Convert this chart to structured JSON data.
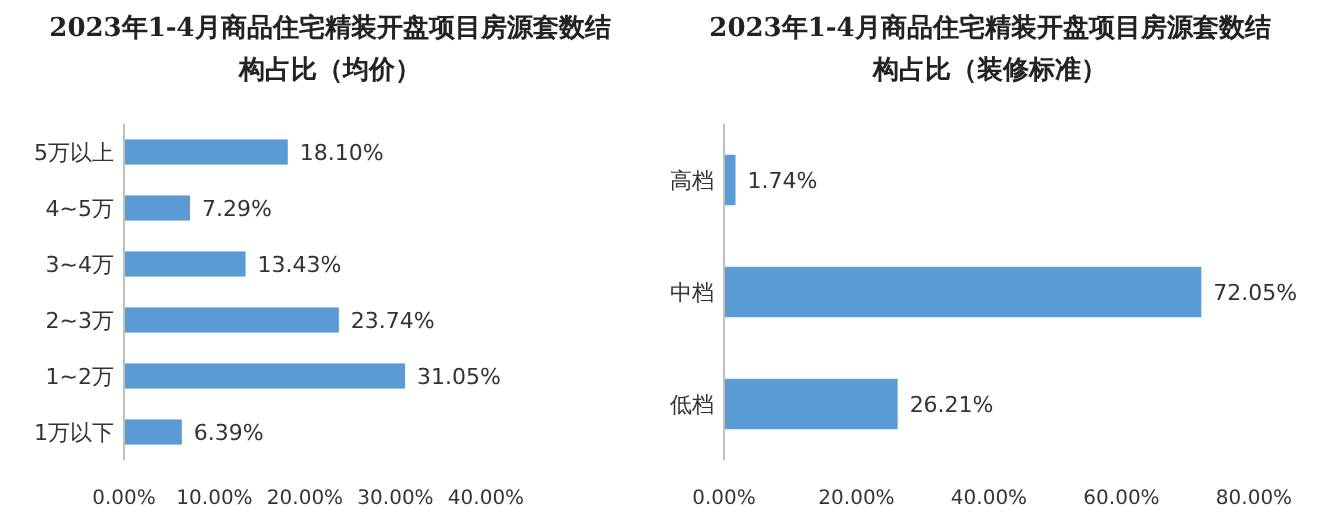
{
  "chart_data": [
    {
      "type": "bar",
      "orientation": "horizontal",
      "title": "2023年1-4月商品住宅精装开盘项目房源套数结构占比（均价）",
      "categories": [
        "5万以上",
        "4~5万",
        "3~4万",
        "2~3万",
        "1~2万",
        "1万以下"
      ],
      "values": [
        18.1,
        7.29,
        13.43,
        23.74,
        31.05,
        6.39
      ],
      "value_labels": [
        "18.10%",
        "7.29%",
        "13.43%",
        "23.74%",
        "31.05%",
        "6.39%"
      ],
      "color": "#5b9bd5",
      "xlim": [
        0,
        40
      ],
      "xticks": [
        {
          "value": 0,
          "label": "0.00%"
        },
        {
          "value": 10,
          "label": "10.00%"
        },
        {
          "value": 20,
          "label": "20.00%"
        },
        {
          "value": 30,
          "label": "30.00%"
        },
        {
          "value": 40,
          "label": "40.00%"
        }
      ],
      "grid": false
    },
    {
      "type": "bar",
      "orientation": "horizontal",
      "title": "2023年1-4月商品住宅精装开盘项目房源套数结构占比（装修标准）",
      "categories": [
        "高档",
        "中档",
        "低档"
      ],
      "values": [
        1.74,
        72.05,
        26.21
      ],
      "value_labels": [
        "1.74%",
        "72.05%",
        "26.21%"
      ],
      "color": "#5b9bd5",
      "xlim": [
        0,
        80
      ],
      "xticks": [
        {
          "value": 0,
          "label": "0.00%"
        },
        {
          "value": 20,
          "label": "20.00%"
        },
        {
          "value": 40,
          "label": "40.00%"
        },
        {
          "value": 60,
          "label": "60.00%"
        },
        {
          "value": 80,
          "label": "80.00%"
        }
      ],
      "grid": false
    }
  ]
}
